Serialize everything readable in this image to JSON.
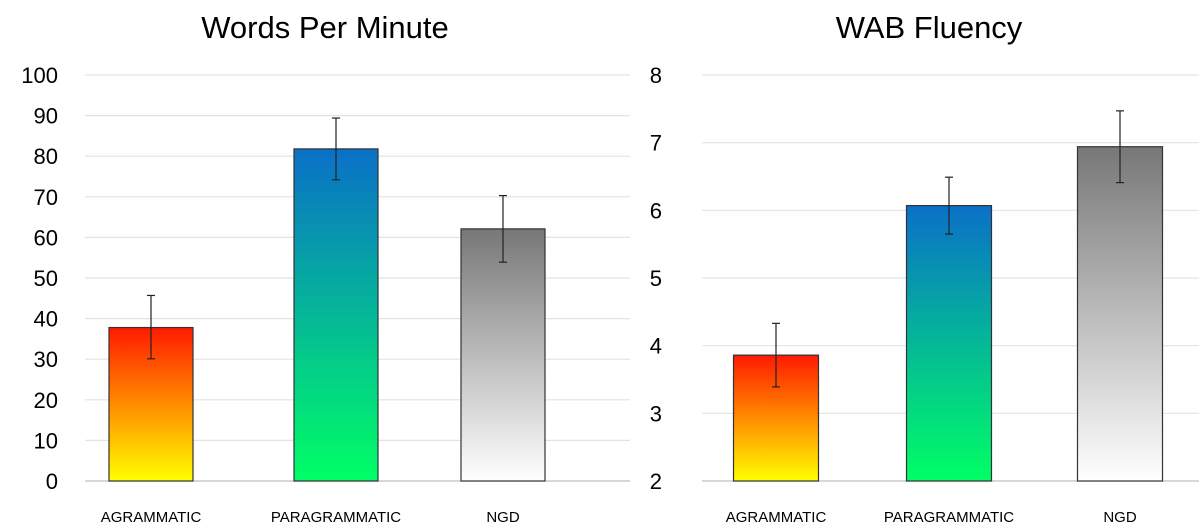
{
  "chart_data": [
    {
      "type": "bar",
      "title": "Words Per Minute",
      "categories": [
        "AGRAMMATIC",
        "PARAGRAMMATIC",
        "NGD"
      ],
      "values": [
        37.8,
        81.8,
        62.1
      ],
      "error_low": [
        30.1,
        74.2,
        53.9
      ],
      "error_high": [
        45.7,
        89.4,
        70.3
      ],
      "ylim": [
        0,
        100
      ],
      "yticks": [
        0,
        10,
        20,
        30,
        40,
        50,
        60,
        70,
        80,
        90,
        100
      ],
      "grid": true,
      "bar_gradients": [
        {
          "top": "#ff1a00",
          "bottom": "#ffff00"
        },
        {
          "top": "#0a70c8",
          "bottom": "#00ff66"
        },
        {
          "top": "#777777",
          "bottom": "#ffffff"
        }
      ]
    },
    {
      "type": "bar",
      "title": "WAB Fluency",
      "categories": [
        "AGRAMMATIC",
        "PARAGRAMMATIC",
        "NGD"
      ],
      "values": [
        3.86,
        6.07,
        6.94
      ],
      "error_low": [
        3.39,
        5.65,
        6.41
      ],
      "error_high": [
        4.33,
        6.49,
        7.47
      ],
      "ylim": [
        2,
        8
      ],
      "yticks": [
        2,
        3,
        4,
        5,
        6,
        7,
        8
      ],
      "grid": true,
      "bar_gradients": [
        {
          "top": "#ff1a00",
          "bottom": "#ffff00"
        },
        {
          "top": "#0a70c8",
          "bottom": "#00ff66"
        },
        {
          "top": "#777777",
          "bottom": "#ffffff"
        }
      ]
    }
  ]
}
